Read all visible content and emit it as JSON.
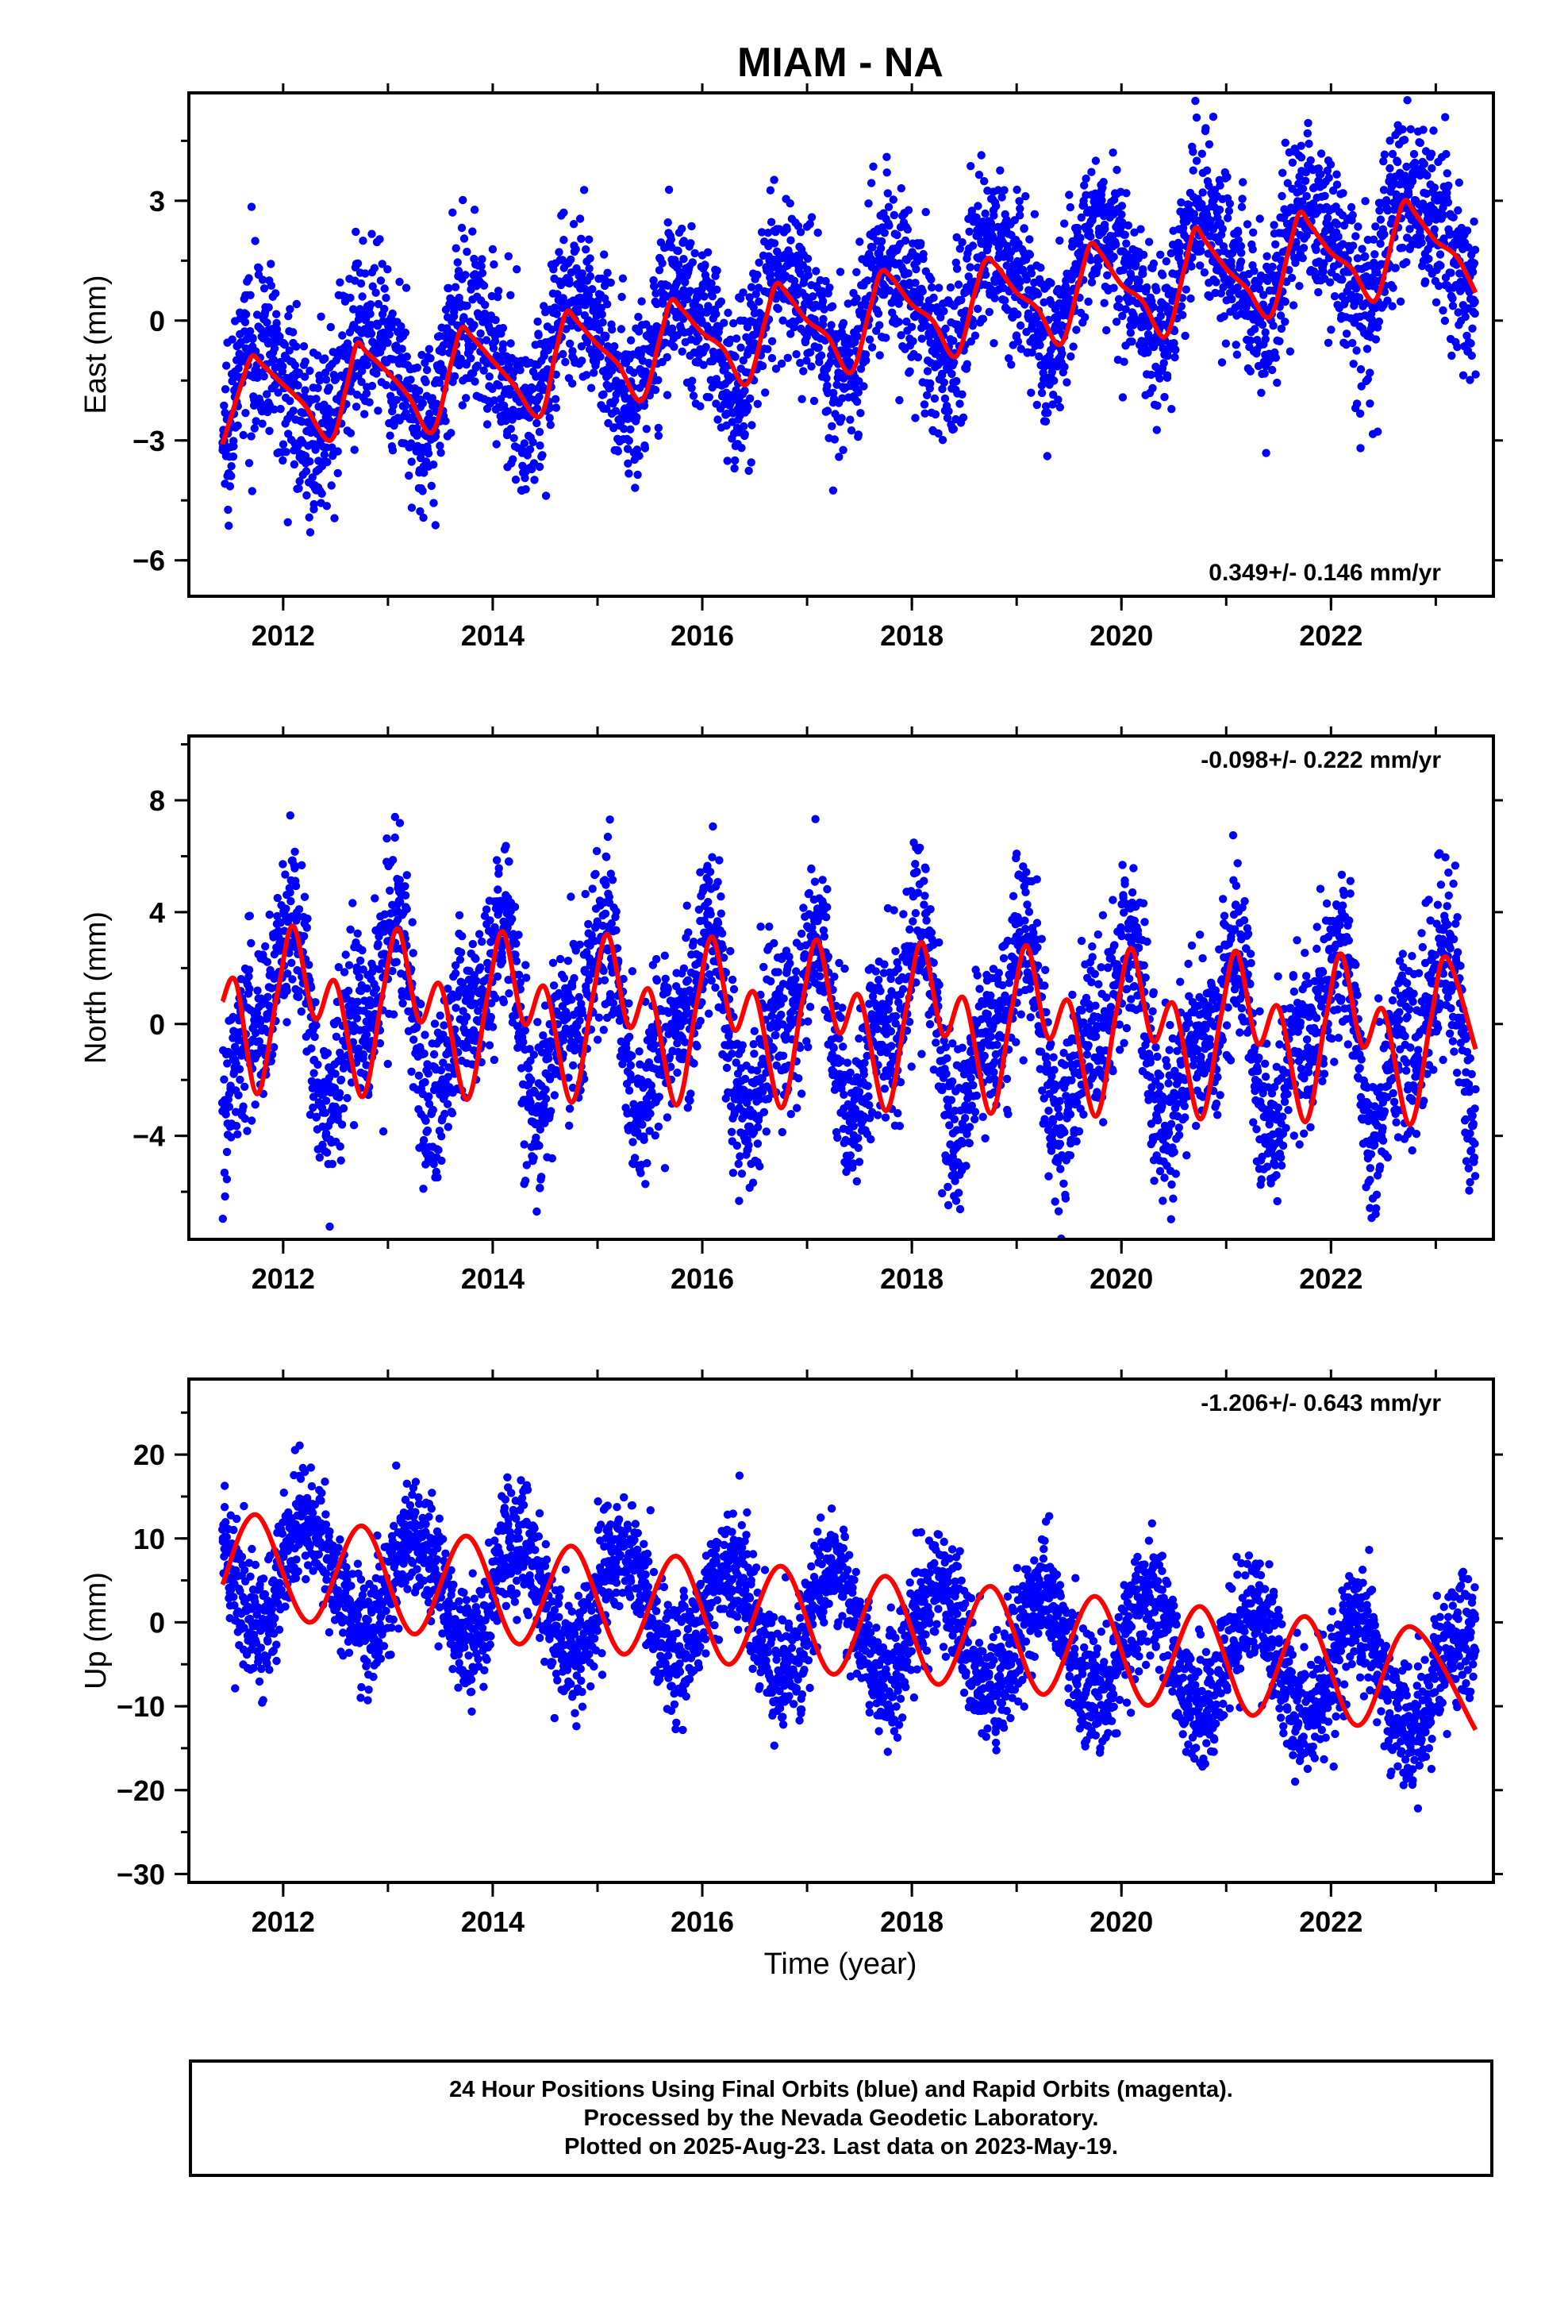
{
  "title": "MIAM - NA",
  "xlabel": "Time (year)",
  "footer": {
    "line1": "24 Hour Positions Using Final Orbits (blue) and Rapid Orbits (magenta).",
    "line2": "Processed by the Nevada Geodetic Laboratory.",
    "line3": "Plotted on 2025-Aug-23. Last data on 2023-May-19."
  },
  "colors": {
    "points": "#0000ff",
    "fit": "#ff0000",
    "axis": "#000000"
  },
  "chart_data": [
    {
      "type": "scatter",
      "component": "east",
      "ylabel": "East (mm)",
      "rate_label": "0.349+/- 0.146 mm/yr",
      "rate_position": "bottom-right",
      "xlim": [
        2011.1,
        2023.55
      ],
      "ylim": [
        -6.9,
        5.7
      ],
      "xticks": [
        2012,
        2014,
        2016,
        2018,
        2020,
        2022
      ],
      "yticks": [
        -6,
        -3,
        0,
        3
      ],
      "series": [
        {
          "kind": "points",
          "trend": {
            "t0": 2011.42,
            "y0": -1.9,
            "t1": 2023.38,
            "y1": 2.2
          },
          "seasonal": {
            "amplitude_annual": 1.3,
            "phase_annual": 0.45,
            "amplitude_semiannual": 0.25
          },
          "scatter_sd": 1.05,
          "n_points": 4100,
          "date_range": [
            2011.42,
            2023.38
          ]
        },
        {
          "kind": "fit",
          "x": [
            2011.42,
            2011.6,
            2011.7,
            2011.8,
            2012.0,
            2012.2,
            2012.45,
            2012.6,
            2012.7,
            2012.8,
            2013.0,
            2013.2,
            2013.42,
            2013.6,
            2013.7,
            2013.8,
            2014.0,
            2014.2,
            2014.45,
            2014.6,
            2014.7,
            2014.8,
            2015.0,
            2015.2,
            2015.42,
            2015.6,
            2015.7,
            2015.8,
            2016.0,
            2016.2,
            2016.42,
            2016.6,
            2016.7,
            2016.8,
            2017.0,
            2017.2,
            2017.42,
            2017.6,
            2017.7,
            2017.8,
            2018.0,
            2018.2,
            2018.42,
            2018.6,
            2018.7,
            2018.8,
            2019.0,
            2019.2,
            2019.42,
            2019.6,
            2019.7,
            2019.8,
            2020.0,
            2020.2,
            2020.42,
            2020.6,
            2020.7,
            2020.8,
            2021.0,
            2021.2,
            2021.42,
            2021.6,
            2021.7,
            2021.8,
            2022.0,
            2022.2,
            2022.42,
            2022.6,
            2022.7,
            2022.8,
            2023.0,
            2023.2,
            2023.38
          ],
          "y": [
            -3.1,
            -1.6,
            -0.9,
            -1.1,
            -1.6,
            -2.1,
            -3.0,
            -1.7,
            -0.6,
            -0.8,
            -1.3,
            -1.9,
            -2.8,
            -1.1,
            -0.2,
            -0.4,
            -1.0,
            -1.6,
            -2.4,
            -0.8,
            0.2,
            0.0,
            -0.6,
            -1.1,
            -2.0,
            -0.4,
            0.5,
            0.3,
            -0.3,
            -0.7,
            -1.6,
            0.0,
            0.9,
            0.7,
            0.0,
            -0.4,
            -1.3,
            0.3,
            1.2,
            1.1,
            0.4,
            0.0,
            -0.9,
            0.7,
            1.5,
            1.4,
            0.7,
            0.3,
            -0.6,
            1.0,
            1.9,
            1.7,
            0.9,
            0.5,
            -0.4,
            1.3,
            2.3,
            2.0,
            1.3,
            0.8,
            0.1,
            1.8,
            2.7,
            2.4,
            1.7,
            1.3,
            0.5,
            2.2,
            3.0,
            2.7,
            2.0,
            1.6,
            0.7
          ]
        }
      ]
    },
    {
      "type": "scatter",
      "component": "north",
      "ylabel": "North (mm)",
      "rate_label": "-0.098+/- 0.222 mm/yr",
      "rate_position": "top-right",
      "xlim": [
        2011.1,
        2023.55
      ],
      "ylim": [
        -7.7,
        10.3
      ],
      "xticks": [
        2012,
        2014,
        2016,
        2018,
        2020,
        2022
      ],
      "yticks": [
        -4,
        0,
        4,
        8
      ],
      "series": [
        {
          "kind": "points",
          "trend": {
            "t0": 2011.42,
            "y0": 0.5,
            "t1": 2023.38,
            "y1": -0.7
          },
          "seasonal": {
            "amplitude_annual": 2.6,
            "phase_annual": 0.25,
            "amplitude_semiannual": 1.4
          },
          "scatter_sd": 1.5,
          "n_points": 4100,
          "date_range": [
            2011.42,
            2023.38
          ]
        },
        {
          "kind": "fit",
          "x": [
            2011.42,
            2011.55,
            2011.75,
            2011.95,
            2012.1,
            2012.3,
            2012.5,
            2012.75,
            2012.95,
            2013.1,
            2013.3,
            2013.5,
            2013.75,
            2013.95,
            2014.1,
            2014.3,
            2014.5,
            2014.75,
            2014.95,
            2015.1,
            2015.3,
            2015.5,
            2015.75,
            2015.95,
            2016.1,
            2016.3,
            2016.5,
            2016.75,
            2016.95,
            2017.1,
            2017.3,
            2017.5,
            2017.75,
            2017.95,
            2018.1,
            2018.3,
            2018.5,
            2018.75,
            2018.95,
            2019.1,
            2019.3,
            2019.5,
            2019.75,
            2019.95,
            2020.1,
            2020.3,
            2020.5,
            2020.75,
            2020.95,
            2021.1,
            2021.3,
            2021.5,
            2021.75,
            2021.95,
            2022.1,
            2022.3,
            2022.5,
            2022.75,
            2022.95,
            2023.1,
            2023.38
          ],
          "y": [
            0.8,
            1.5,
            -2.5,
            1.2,
            3.5,
            0.2,
            1.5,
            -2.6,
            1.1,
            3.4,
            0.1,
            1.4,
            -2.7,
            1.0,
            3.3,
            0.0,
            1.3,
            -2.8,
            0.9,
            3.2,
            -0.1,
            1.2,
            -2.9,
            0.8,
            3.1,
            -0.2,
            1.1,
            -3.0,
            0.7,
            3.0,
            -0.3,
            1.0,
            -3.1,
            0.6,
            2.9,
            -0.4,
            0.9,
            -3.2,
            0.5,
            2.8,
            -0.5,
            0.8,
            -3.3,
            0.4,
            2.7,
            -0.6,
            0.7,
            -3.4,
            0.3,
            2.6,
            -0.7,
            0.6,
            -3.5,
            0.2,
            2.5,
            -0.8,
            0.5,
            -3.6,
            0.1,
            2.4,
            -0.9
          ]
        }
      ]
    },
    {
      "type": "scatter",
      "component": "up",
      "ylabel": "Up (mm)",
      "rate_label": "-1.206+/- 0.643 mm/yr",
      "rate_position": "top-right",
      "xlim": [
        2011.1,
        2023.55
      ],
      "ylim": [
        -31,
        29
      ],
      "xticks": [
        2012,
        2014,
        2016,
        2018,
        2020,
        2022
      ],
      "yticks": [
        -30,
        -20,
        -10,
        0,
        10,
        20
      ],
      "series": [
        {
          "kind": "points",
          "trend": {
            "t0": 2011.42,
            "y0": 6.5,
            "t1": 2023.38,
            "y1": -7.5
          },
          "seasonal": {
            "amplitude_annual": 6.3,
            "phase_annual": 0.0,
            "amplitude_semiannual": 0.0
          },
          "scatter_sd": 3.5,
          "n_points": 4100,
          "date_range": [
            2011.42,
            2023.38
          ]
        },
        {
          "kind": "fit",
          "x": [
            2011.42,
            2011.75,
            2012.25,
            2012.75,
            2013.25,
            2013.75,
            2014.25,
            2014.75,
            2015.25,
            2015.75,
            2016.25,
            2016.75,
            2017.25,
            2017.75,
            2018.25,
            2018.75,
            2019.25,
            2019.75,
            2020.25,
            2020.75,
            2021.25,
            2021.75,
            2022.25,
            2022.75,
            2023.38
          ],
          "y": [
            4.5,
            12.8,
            0.0,
            11.5,
            -1.4,
            10.3,
            -2.6,
            9.1,
            -3.8,
            7.9,
            -5.0,
            6.7,
            -6.2,
            5.5,
            -7.4,
            4.3,
            -8.6,
            3.1,
            -9.9,
            1.9,
            -11.1,
            0.7,
            -12.3,
            -0.5,
            -12.8
          ]
        }
      ]
    }
  ]
}
